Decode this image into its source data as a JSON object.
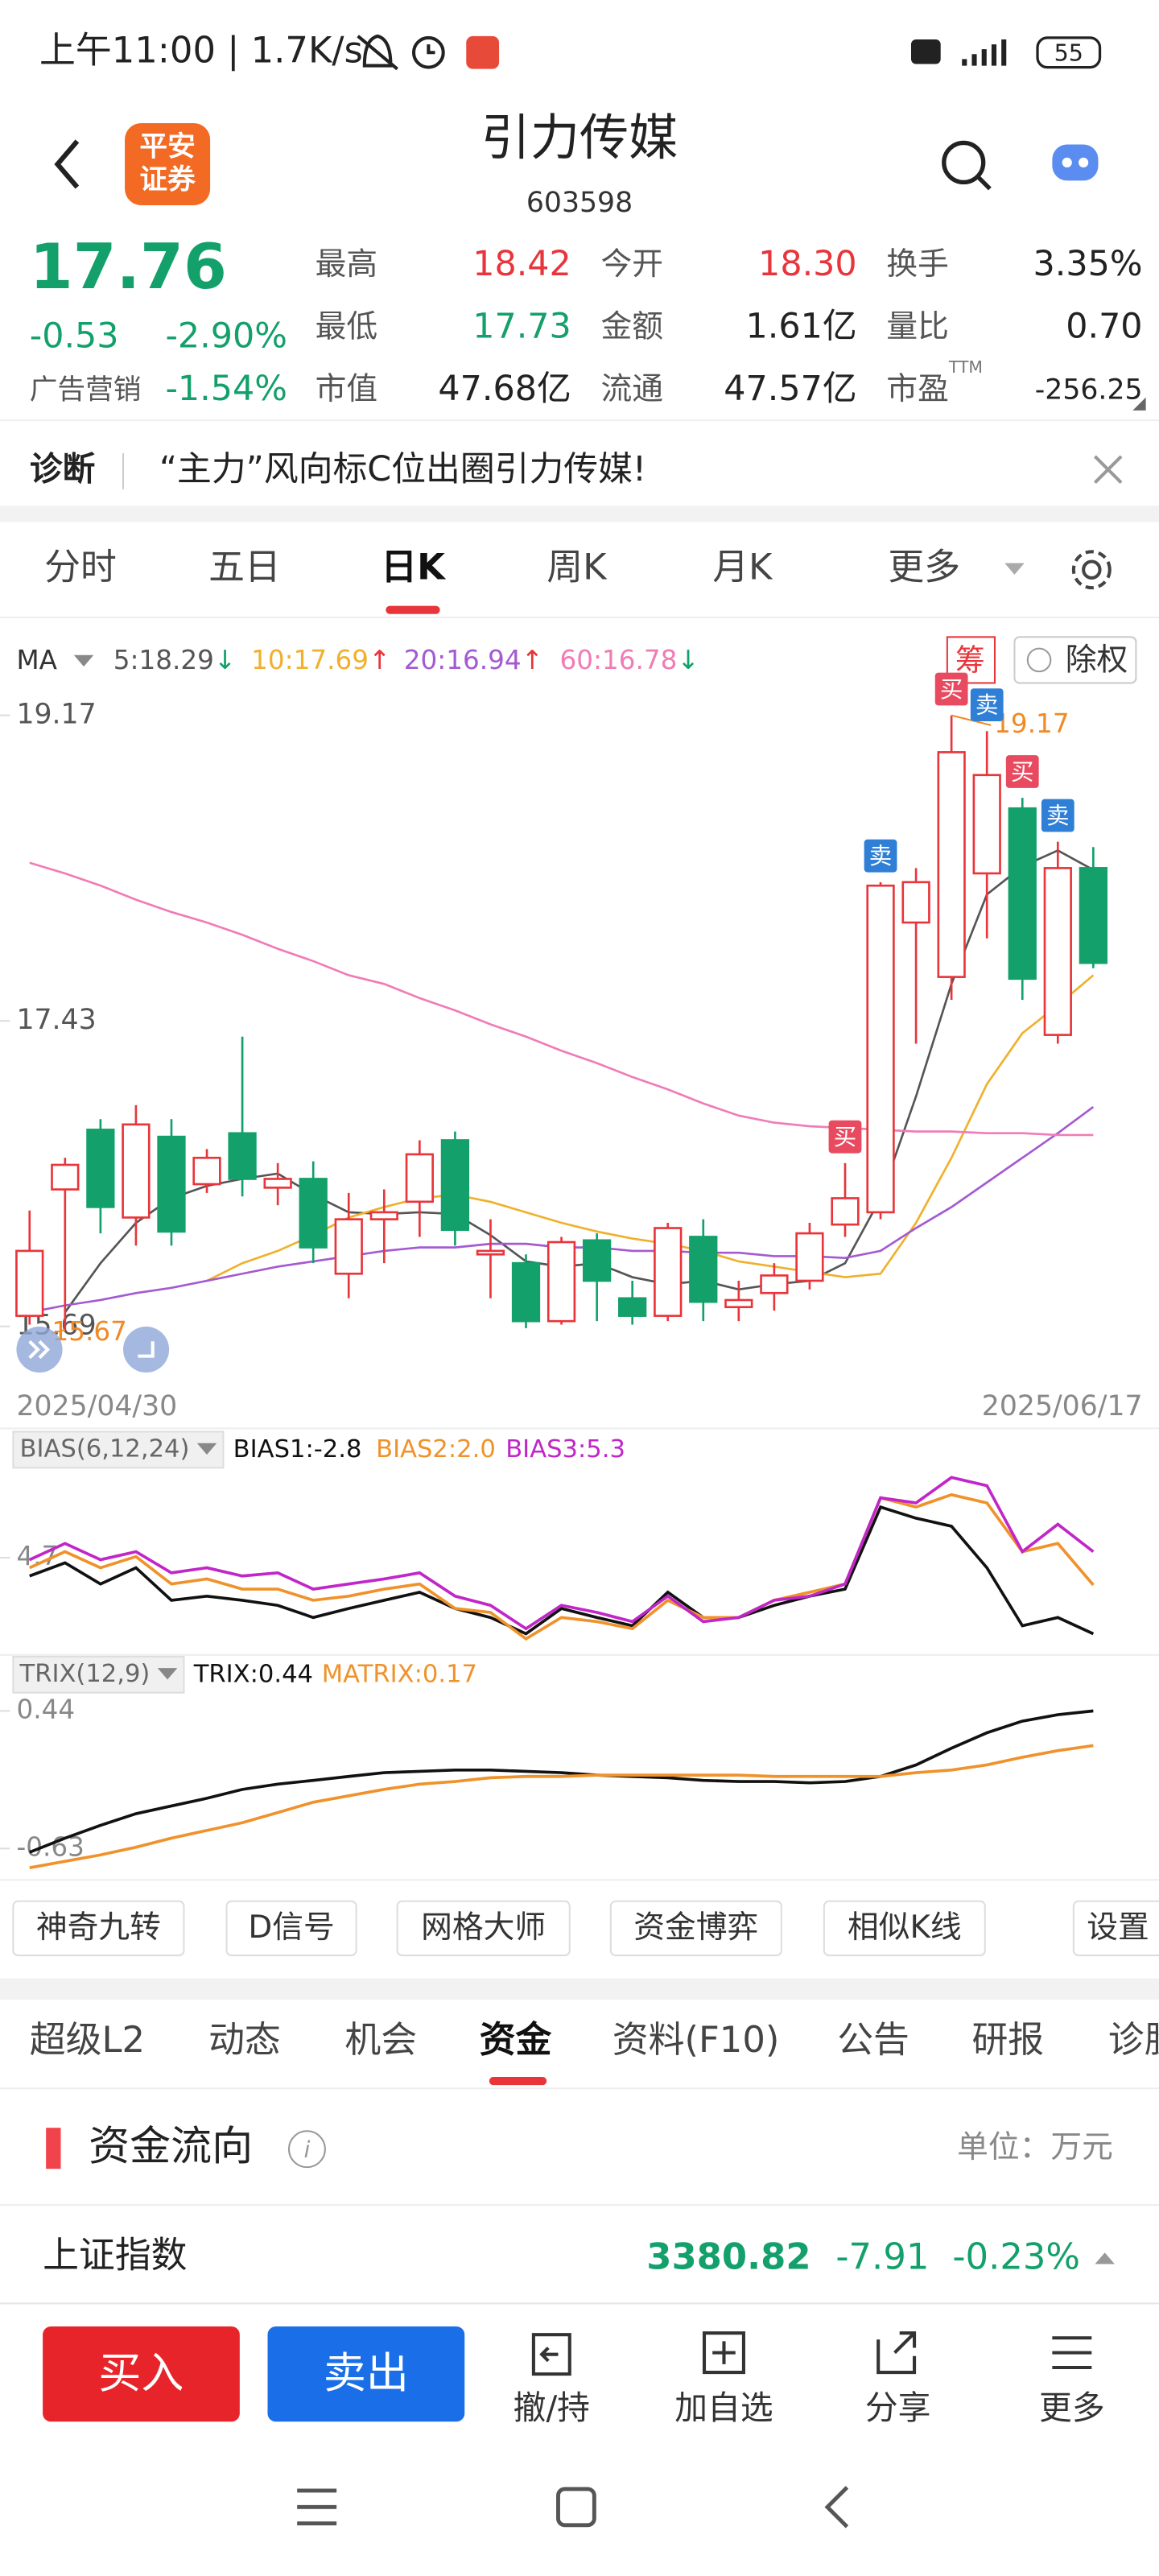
{
  "status_bar": {
    "time": "上午11:00 | 1.7K/s",
    "battery": "55"
  },
  "header": {
    "logo": [
      "平安",
      "证券"
    ],
    "title": "引力传媒",
    "code": "603598"
  },
  "quote": {
    "price": "17.76",
    "change": "-0.53",
    "change_pct": "-2.90%",
    "sector": "广告营销",
    "sector_pct": "-1.54%",
    "stats": [
      {
        "label": "最高",
        "value": "18.42",
        "color": "#e8353b"
      },
      {
        "label": "今开",
        "value": "18.30",
        "color": "#e8353b"
      },
      {
        "label": "换手",
        "value": "3.35%",
        "color": "#222"
      },
      {
        "label": "最低",
        "value": "17.73",
        "color": "#13a06b"
      },
      {
        "label": "金额",
        "value": "1.61亿",
        "color": "#222"
      },
      {
        "label": "量比",
        "value": "0.70",
        "color": "#222"
      },
      {
        "label": "市值",
        "value": "47.68亿",
        "color": "#222"
      },
      {
        "label": "流通",
        "value": "47.57亿",
        "color": "#222"
      },
      {
        "label": "市盈",
        "sup": "TTM",
        "value": "-256.25",
        "color": "#222"
      }
    ]
  },
  "notice": {
    "tag": "诊断",
    "text": "“主力”风向标C位出圈引力传媒!"
  },
  "tabs": {
    "items": [
      "分时",
      "五日",
      "日K",
      "周K",
      "月K",
      "更多"
    ],
    "active": 2
  },
  "chart_buttons": {
    "chip": "筹",
    "rights": "除权"
  },
  "chart_data": [
    {
      "type": "candlestick",
      "indicator": "MA",
      "categories": [
        "2025/04/30",
        null,
        null,
        null,
        null,
        null,
        null,
        null,
        null,
        null,
        null,
        null,
        null,
        null,
        null,
        null,
        null,
        null,
        null,
        null,
        null,
        null,
        null,
        null,
        null,
        null,
        null,
        null,
        null,
        null,
        "2025/06/17"
      ],
      "open": [
        15.75,
        16.47,
        16.81,
        16.31,
        16.77,
        16.5,
        16.79,
        16.48,
        16.53,
        15.99,
        16.3,
        16.4,
        16.75,
        16.1,
        16.05,
        15.72,
        16.18,
        15.85,
        15.75,
        16.2,
        15.8,
        15.88,
        15.95,
        16.27,
        16.34,
        17.99,
        17.68,
        18.27,
        18.64,
        17.35,
        18.3
      ],
      "high": [
        16.35,
        16.65,
        16.87,
        16.95,
        16.87,
        16.7,
        17.34,
        16.62,
        16.63,
        16.45,
        16.47,
        16.75,
        16.8,
        16.3,
        16.1,
        16.2,
        16.22,
        15.95,
        16.28,
        16.3,
        15.95,
        16.05,
        16.28,
        16.62,
        18.22,
        18.3,
        19.17,
        19.08,
        18.7,
        18.45,
        18.42
      ],
      "low": [
        15.7,
        15.67,
        16.22,
        16.15,
        16.15,
        16.45,
        16.43,
        16.38,
        16.05,
        15.85,
        16.05,
        16.2,
        16.15,
        15.85,
        15.68,
        15.7,
        15.72,
        15.7,
        15.72,
        15.72,
        15.72,
        15.78,
        15.9,
        16.2,
        16.3,
        17.3,
        17.55,
        17.9,
        17.55,
        17.3,
        17.73
      ],
      "close": [
        16.12,
        16.61,
        16.37,
        16.84,
        16.23,
        16.65,
        16.53,
        16.53,
        16.14,
        16.3,
        16.34,
        16.67,
        16.24,
        16.12,
        15.72,
        16.17,
        15.95,
        15.75,
        16.25,
        15.83,
        15.84,
        15.98,
        16.22,
        16.42,
        18.2,
        18.22,
        18.96,
        18.83,
        17.67,
        18.3,
        17.76
      ],
      "up_color": "#e8353b",
      "down_color": "#13a06b",
      "series": [
        {
          "name": "5:18.29",
          "trend": "↓",
          "trend_color": "#13a06b",
          "color": "#555555",
          "values": [
            null,
            15.77,
            16.05,
            16.28,
            16.42,
            16.49,
            16.53,
            16.56,
            16.44,
            16.34,
            16.33,
            16.34,
            16.33,
            16.21,
            16.06,
            16.03,
            16.05,
            15.97,
            15.93,
            15.95,
            15.9,
            15.93,
            15.95,
            16.05,
            16.42,
            17.0,
            17.64,
            18.15,
            18.31,
            18.4,
            18.29
          ]
        },
        {
          "name": "10:17.69",
          "trend": "↑",
          "trend_color": "#e8353b",
          "color": "#f0b02c",
          "values": [
            null,
            null,
            null,
            null,
            null,
            15.95,
            16.05,
            16.12,
            16.21,
            16.31,
            16.37,
            16.42,
            16.44,
            16.4,
            16.34,
            16.28,
            16.23,
            16.19,
            16.16,
            16.12,
            16.06,
            16.03,
            16.0,
            15.97,
            15.99,
            16.28,
            16.65,
            17.07,
            17.36,
            17.52,
            17.69
          ]
        },
        {
          "name": "20:16.94",
          "trend": "↑",
          "trend_color": "#e8353b",
          "color": "#a35ad2",
          "values": [
            15.77,
            15.81,
            15.84,
            15.88,
            15.91,
            15.95,
            15.99,
            16.03,
            16.06,
            16.09,
            16.12,
            16.14,
            16.14,
            16.16,
            16.16,
            16.14,
            16.14,
            16.12,
            16.12,
            16.11,
            16.11,
            16.09,
            16.09,
            16.08,
            16.12,
            16.25,
            16.37,
            16.51,
            16.65,
            16.79,
            16.94
          ]
        },
        {
          "name": "60:16.78",
          "trend": "↓",
          "trend_color": "#13a06b",
          "color": "#f07cb6",
          "values": [
            18.33,
            18.27,
            18.2,
            18.12,
            18.05,
            17.99,
            17.92,
            17.84,
            17.77,
            17.69,
            17.64,
            17.56,
            17.49,
            17.41,
            17.34,
            17.26,
            17.19,
            17.11,
            17.04,
            16.96,
            16.89,
            16.85,
            16.83,
            16.82,
            16.81,
            16.8,
            16.8,
            16.79,
            16.79,
            16.78,
            16.78
          ]
        }
      ],
      "ylim": [
        15.53,
        19.27
      ],
      "yticks": [
        15.69,
        17.43,
        19.17
      ],
      "grid": false,
      "high_label": {
        "text": "19.17",
        "index": 26
      },
      "low_label": {
        "text": "15.67",
        "index": 1
      },
      "signals": [
        {
          "label": "买",
          "index": 23,
          "color": "#e84a5f"
        },
        {
          "label": "卖",
          "index": 24,
          "color": "#2f7fd6"
        },
        {
          "label": "买",
          "index": 26,
          "color": "#e84a5f"
        },
        {
          "label": "卖",
          "index": 27,
          "color": "#2f7fd6"
        },
        {
          "label": "买",
          "index": 28,
          "color": "#e84a5f"
        },
        {
          "label": "卖",
          "index": 29,
          "color": "#2f7fd6"
        }
      ]
    },
    {
      "type": "line",
      "indicator": "BIAS(6,12,24)",
      "series": [
        {
          "name": "BIAS1:-2.8",
          "color": "#111111",
          "values": [
            2.9,
            4.2,
            2.1,
            3.7,
            0.5,
            0.9,
            0.5,
            0.0,
            -1.2,
            -0.3,
            0.5,
            1.3,
            -0.3,
            -1.2,
            -2.8,
            -0.3,
            -1.2,
            -2.0,
            1.3,
            -1.2,
            -1.2,
            0.0,
            0.9,
            1.6,
            9.7,
            8.6,
            7.8,
            3.7,
            -2.0,
            -1.2,
            -2.8
          ]
        },
        {
          "name": "BIAS2:2.0",
          "color": "#f0922b",
          "values": [
            3.7,
            5.3,
            3.7,
            4.8,
            2.1,
            2.6,
            1.6,
            1.6,
            0.5,
            0.9,
            1.6,
            2.1,
            -0.3,
            -0.7,
            -3.3,
            -1.2,
            -1.6,
            -2.3,
            0.5,
            -1.2,
            -1.2,
            0.5,
            1.3,
            2.1,
            10.6,
            9.7,
            10.9,
            10.1,
            5.3,
            6.1,
            2.0
          ]
        },
        {
          "name": "BIAS3:5.3",
          "color": "#c026c8",
          "values": [
            4.5,
            6.1,
            4.5,
            5.3,
            3.2,
            3.7,
            2.9,
            3.2,
            1.6,
            2.1,
            2.6,
            3.2,
            0.9,
            0.0,
            -2.3,
            0.0,
            -0.7,
            -1.6,
            0.9,
            -1.6,
            -1.2,
            0.5,
            0.9,
            2.1,
            10.6,
            10.1,
            12.6,
            11.8,
            5.3,
            8.0,
            5.3
          ]
        }
      ],
      "ylim": [
        -4.4,
        13.4
      ],
      "yticks": [
        4.7
      ]
    },
    {
      "type": "line",
      "indicator": "TRIX(12,9)",
      "series": [
        {
          "name": "TRIX:0.44",
          "color": "#111111",
          "values": [
            -0.66,
            -0.55,
            -0.45,
            -0.36,
            -0.3,
            -0.24,
            -0.17,
            -0.13,
            -0.1,
            -0.07,
            -0.04,
            -0.03,
            -0.02,
            -0.02,
            -0.03,
            -0.04,
            -0.06,
            -0.07,
            -0.08,
            -0.1,
            -0.11,
            -0.11,
            -0.12,
            -0.11,
            -0.07,
            0.02,
            0.15,
            0.27,
            0.36,
            0.41,
            0.44
          ]
        },
        {
          "name": "MATRIX:0.17",
          "color": "#f0922b",
          "values": [
            -0.78,
            -0.73,
            -0.68,
            -0.62,
            -0.55,
            -0.49,
            -0.43,
            -0.35,
            -0.27,
            -0.22,
            -0.17,
            -0.13,
            -0.11,
            -0.08,
            -0.07,
            -0.07,
            -0.06,
            -0.06,
            -0.06,
            -0.06,
            -0.06,
            -0.07,
            -0.07,
            -0.07,
            -0.07,
            -0.04,
            -0.02,
            0.02,
            0.08,
            0.13,
            0.17
          ]
        }
      ],
      "ylim": [
        -0.81,
        0.53
      ],
      "yticks": [
        -0.63,
        0.44
      ]
    }
  ],
  "tools": [
    "神奇九转",
    "D信号",
    "网格大师",
    "资金博弈",
    "相似K线",
    "设置"
  ],
  "sections": {
    "items": [
      "超级L2",
      "动态",
      "机会",
      "资金",
      "资料(F10)",
      "公告",
      "研报",
      "诊股"
    ],
    "active": 3
  },
  "fund_flow": {
    "title": "资金流向",
    "unit": "单位：万元",
    "index_name": "上证指数",
    "index_value": "3380.82",
    "index_change": "-7.91",
    "index_pct": "-0.23%"
  },
  "bottom_bar": {
    "buy": "买入",
    "sell": "卖出",
    "actions": [
      "撤/持",
      "加自选",
      "分享",
      "更多"
    ]
  }
}
